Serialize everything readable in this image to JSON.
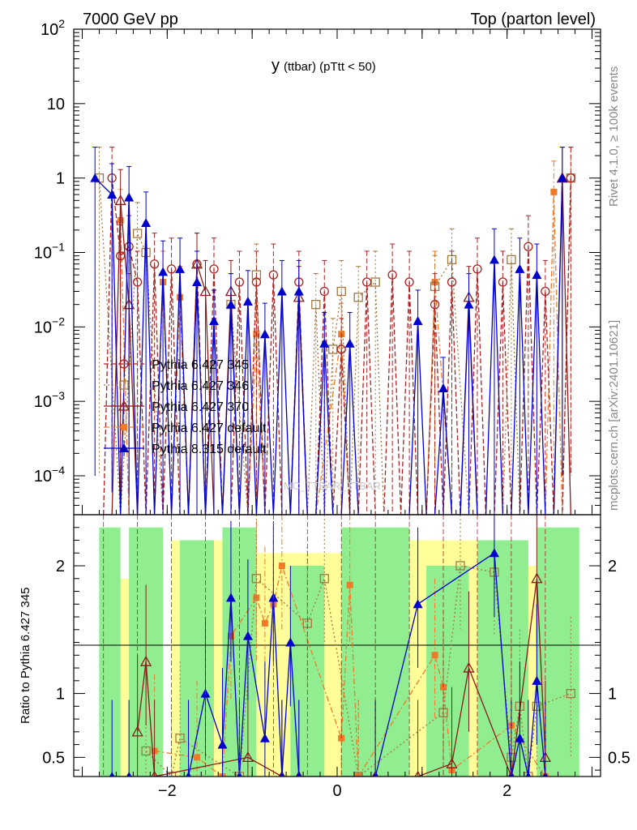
{
  "header": {
    "left": "7000 GeV pp",
    "right": "Top (parton level)"
  },
  "side_labels": {
    "rivet": "Rivet 4.1.0, ≥ 100k events",
    "mcplots": "mcplots.cern.ch [arXiv:2401.10621]"
  },
  "watermark": "MC_TTBAR_TTBAR",
  "colors": {
    "p345": "#aa2222",
    "p346": "#a07840",
    "p370": "#8b1a1a",
    "pdefault": "#f07a28",
    "p8": "#0000cc",
    "band_green": "#90ee90",
    "band_yellow": "#ffff99"
  },
  "chart_data": {
    "type": "line",
    "title_main": "y",
    "title_rest": "(ttbar)  (pTtt < 50)",
    "xlabel": "",
    "ylabel": "",
    "ratio_ylabel": "Ratio to Pythia 6.427 345",
    "xlim": [
      -3.1,
      3.1
    ],
    "ylim": [
      3e-05,
      100
    ],
    "ratio_ylim": [
      0.35,
      2.4
    ],
    "x_ticks": [
      "−2",
      "0",
      "2"
    ],
    "y_ticks": [
      "10^2",
      "10",
      "1",
      "10^-1",
      "10^-2",
      "10^-3",
      "10^-4"
    ],
    "ratio_ticks": [
      "2",
      "1",
      "0.5"
    ],
    "legend": [
      {
        "name": "Pythia 6.427 345",
        "key": "p345",
        "marker": "open-circle"
      },
      {
        "name": "Pythia 6.427 346",
        "key": "p346",
        "marker": "open-square"
      },
      {
        "name": "Pythia 6.427 370",
        "key": "p370",
        "marker": "open-triangle"
      },
      {
        "name": "Pythia 6.427 default",
        "key": "pdefault",
        "marker": "filled-square"
      },
      {
        "name": "Pythia 8.315 default",
        "key": "p8",
        "marker": "filled-triangle"
      }
    ],
    "series": [
      {
        "name": "Pythia 8.315 default",
        "key": "p8",
        "x": [
          -2.85,
          -2.65,
          -2.55,
          -2.45,
          -2.35,
          -2.25,
          -2.15,
          -2.05,
          -1.95,
          -1.85,
          -1.75,
          -1.65,
          -1.55,
          -1.45,
          -1.35,
          -1.25,
          -1.15,
          -1.05,
          -0.95,
          -0.85,
          -0.75,
          -0.65,
          -0.55,
          -0.45,
          -0.35,
          -0.25,
          -0.15,
          -0.05,
          0.05,
          0.15,
          0.25,
          0.35,
          0.45,
          0.55,
          0.65,
          0.75,
          0.85,
          0.95,
          1.05,
          1.15,
          1.25,
          1.35,
          1.45,
          1.55,
          1.65,
          1.75,
          1.85,
          1.95,
          2.05,
          2.15,
          2.25,
          2.35,
          2.45,
          2.55,
          2.65
        ],
        "values": [
          1.0,
          0.6,
          3e-05,
          0.55,
          3e-05,
          0.25,
          3e-05,
          0.055,
          3e-05,
          0.06,
          3e-05,
          0.04,
          3e-05,
          0.012,
          3e-05,
          0.02,
          3e-05,
          0.022,
          3e-05,
          0.008,
          3e-05,
          0.03,
          3e-05,
          0.03,
          3e-05,
          3e-05,
          0.006,
          3e-05,
          3e-05,
          0.006,
          3e-05,
          3e-05,
          3e-05,
          3e-05,
          3e-05,
          3e-05,
          3e-05,
          0.012,
          3e-05,
          3e-05,
          0.0015,
          3e-05,
          3e-05,
          0.02,
          3e-05,
          3e-05,
          0.08,
          3e-05,
          3e-05,
          0.06,
          3e-05,
          0.05,
          3e-05,
          3e-05,
          1.0
        ]
      },
      {
        "name": "Pythia 6.427 345",
        "key": "p345",
        "x": [
          -2.75,
          -2.65,
          -2.55,
          -2.45,
          -2.35,
          -2.25,
          -2.15,
          -2.05,
          -1.95,
          -1.85,
          -1.75,
          -1.65,
          -1.55,
          -1.45,
          -1.35,
          -1.25,
          -1.15,
          -1.05,
          -0.95,
          -0.85,
          -0.75,
          -0.65,
          -0.55,
          -0.45,
          -0.35,
          -0.25,
          -0.15,
          -0.05,
          0.05,
          0.15,
          0.25,
          0.35,
          0.45,
          0.55,
          0.65,
          0.75,
          0.85,
          0.95,
          1.05,
          1.15,
          1.25,
          1.35,
          1.45,
          1.55,
          1.65,
          1.75,
          1.85,
          1.95,
          2.05,
          2.15,
          2.25,
          2.35,
          2.45,
          2.55,
          2.65,
          2.75
        ],
        "values": [
          3e-05,
          1.0,
          0.09,
          0.12,
          0.04,
          3e-05,
          0.07,
          3e-05,
          0.06,
          3e-05,
          3e-05,
          0.07,
          3e-05,
          0.06,
          3e-05,
          3e-05,
          0.04,
          3e-05,
          0.04,
          3e-05,
          0.05,
          3e-05,
          3e-05,
          0.04,
          3e-05,
          3e-05,
          0.03,
          3e-05,
          0.005,
          3e-05,
          3e-05,
          0.04,
          3e-05,
          3e-05,
          0.05,
          3e-05,
          0.04,
          3e-05,
          3e-05,
          0.02,
          3e-05,
          0.04,
          3e-05,
          3e-05,
          0.06,
          3e-05,
          3e-05,
          0.04,
          3e-05,
          3e-05,
          0.12,
          3e-05,
          0.03,
          3e-05,
          3e-05,
          1.0
        ]
      },
      {
        "name": "Pythia 6.427 346",
        "key": "p346",
        "x": [
          -2.8,
          -2.55,
          -2.35,
          -2.25,
          -2.05,
          -1.95,
          -1.85,
          -1.75,
          -1.45,
          -1.35,
          -1.25,
          -1.05,
          -0.95,
          -0.85,
          -0.55,
          -0.45,
          -0.35,
          -0.25,
          -0.15,
          -0.05,
          0.05,
          0.15,
          0.25,
          0.45,
          0.55,
          0.65,
          0.85,
          1.05,
          1.15,
          1.35,
          1.55,
          1.75,
          1.85,
          1.95,
          2.05,
          2.15,
          2.25,
          2.35,
          2.45,
          2.55,
          2.65,
          2.75
        ],
        "values": [
          1.0,
          3e-05,
          0.18,
          0.1,
          3e-05,
          3e-05,
          3e-05,
          3e-05,
          3e-05,
          3e-05,
          0.02,
          3e-05,
          0.05,
          3e-05,
          3e-05,
          3e-05,
          3e-05,
          0.02,
          3e-05,
          0.005,
          0.03,
          3e-05,
          0.025,
          0.04,
          3e-05,
          3e-05,
          3e-05,
          3e-05,
          0.035,
          0.08,
          3e-05,
          3e-05,
          3e-05,
          3e-05,
          0.08,
          3e-05,
          3e-05,
          3e-05,
          3e-05,
          3e-05,
          3e-05,
          1.0
        ]
      },
      {
        "name": "Pythia 6.427 370",
        "key": "p370",
        "x": [
          -2.75,
          -2.65,
          -2.55,
          -2.45,
          -2.35,
          -2.25,
          -2.15,
          -2.05,
          -1.95,
          -1.85,
          -1.75,
          -1.65,
          -1.55,
          -1.45,
          -1.35,
          -1.25,
          -1.15,
          -1.05,
          -0.95,
          -0.85,
          -0.75,
          -0.65,
          -0.55,
          -0.45,
          -0.35,
          -0.25,
          -0.15,
          -0.05,
          0.05,
          0.15,
          0.25,
          0.35,
          0.45,
          0.55,
          0.65,
          0.75,
          0.85,
          0.95,
          1.05,
          1.15,
          1.25,
          1.35,
          1.45,
          1.55,
          1.65,
          1.75,
          1.85,
          1.95,
          2.05,
          2.15,
          2.25,
          2.35,
          2.45,
          2.55,
          2.65,
          2.75
        ],
        "values": [
          3e-05,
          3e-05,
          0.5,
          0.02,
          3e-05,
          3e-05,
          3e-05,
          3e-05,
          3e-05,
          3e-05,
          3e-05,
          0.07,
          0.03,
          3e-05,
          3e-05,
          0.03,
          3e-05,
          3e-05,
          3e-05,
          3e-05,
          3e-05,
          3e-05,
          3e-05,
          0.025,
          3e-05,
          3e-05,
          3e-05,
          3e-05,
          3e-05,
          3e-05,
          3e-05,
          3e-05,
          3e-05,
          3e-05,
          3e-05,
          3e-05,
          3e-05,
          3e-05,
          3e-05,
          3e-05,
          3e-05,
          3e-05,
          3e-05,
          0.025,
          3e-05,
          3e-05,
          3e-05,
          3e-05,
          3e-05,
          3e-05,
          3e-05,
          3e-05,
          3e-05,
          3e-05,
          1.0,
          3e-05
        ]
      },
      {
        "name": "Pythia 6.427 default",
        "key": "pdefault",
        "x": [
          -2.55,
          -2.45,
          -2.35,
          -2.15,
          -2.05,
          -1.95,
          -1.85,
          -1.75,
          -1.25,
          -1.05,
          -0.95,
          -0.85,
          -0.65,
          -0.45,
          -0.35,
          -0.25,
          0.05,
          0.15,
          0.45,
          0.55,
          0.75,
          0.85,
          1.05,
          1.15,
          1.35,
          1.45,
          1.55,
          1.75,
          1.85,
          1.95,
          2.05,
          2.15,
          2.35,
          2.45,
          2.55,
          2.65
        ],
        "values": [
          0.27,
          3e-05,
          3e-05,
          3e-05,
          0.04,
          3e-05,
          0.025,
          3e-05,
          3e-05,
          3e-05,
          0.008,
          3e-05,
          3e-05,
          3e-05,
          3e-05,
          3e-05,
          0.008,
          3e-05,
          3e-05,
          3e-05,
          3e-05,
          3e-05,
          3e-05,
          0.04,
          3e-05,
          3e-05,
          3e-05,
          3e-05,
          3e-05,
          3e-05,
          3e-05,
          3e-05,
          3e-05,
          3e-05,
          0.65,
          3e-05
        ]
      }
    ],
    "ratio": [
      {
        "key": "p8",
        "x": [
          -2.65,
          -2.45,
          -1.75,
          -1.55,
          -1.35,
          -1.25,
          -1.15,
          -1.05,
          -0.85,
          -0.75,
          -0.65,
          -0.55,
          -0.45,
          0.45,
          0.95,
          1.85,
          2.05,
          2.15,
          2.25,
          2.35,
          2.45
        ],
        "values": [
          0.35,
          0.35,
          0.35,
          1.0,
          0.6,
          1.75,
          0.35,
          1.45,
          0.65,
          1.75,
          0.35,
          1.4,
          0.35,
          0.35,
          1.7,
          2.1,
          0.35,
          0.65,
          0.35,
          1.1,
          0.35
        ]
      },
      {
        "key": "p370",
        "x": [
          -2.35,
          -2.25,
          -2.15,
          -1.05,
          -0.65,
          -0.45,
          0.45,
          0.95,
          1.35,
          1.55,
          2.05,
          2.35,
          2.45
        ],
        "values": [
          0.7,
          1.25,
          0.35,
          0.5,
          0.35,
          0.35,
          0.35,
          0.35,
          0.45,
          1.2,
          0.35,
          1.9,
          0.5
        ]
      },
      {
        "key": "p346",
        "x": [
          -2.25,
          -1.95,
          -1.85,
          -1.15,
          -0.95,
          -0.35,
          -0.15,
          0.25,
          1.25,
          1.45,
          1.85,
          2.05,
          2.15,
          2.25,
          2.35,
          2.75
        ],
        "values": [
          0.55,
          0.35,
          0.65,
          0.35,
          1.9,
          1.55,
          1.9,
          0.35,
          0.85,
          2.0,
          1.95,
          0.5,
          0.9,
          0.35,
          0.9,
          1.0
        ]
      },
      {
        "key": "pdefault",
        "x": [
          -2.15,
          -1.65,
          -1.35,
          -1.25,
          -0.95,
          -0.85,
          -0.75,
          -0.65,
          0.05,
          0.15,
          0.25,
          1.15,
          1.25,
          1.35,
          2.05,
          2.45
        ],
        "values": [
          0.55,
          0.5,
          0.35,
          1.45,
          1.75,
          1.55,
          1.7,
          2.0,
          0.65,
          1.85,
          0.35,
          1.3,
          1.05,
          0.4,
          0.75,
          0.35
        ]
      }
    ],
    "band_yellow": [
      {
        "x0": -2.65,
        "x1": -2.05,
        "lo": 0.35,
        "hi": 1.9
      },
      {
        "x0": -1.95,
        "x1": -1.35,
        "lo": 0.35,
        "hi": 2.2
      },
      {
        "x0": -0.95,
        "x1": 0.45,
        "lo": 0.35,
        "hi": 2.1
      },
      {
        "x0": 0.85,
        "x1": 1.65,
        "lo": 0.35,
        "hi": 2.2
      },
      {
        "x0": 2.05,
        "x1": 2.75,
        "lo": 0.35,
        "hi": 2.0
      }
    ],
    "band_green": [
      {
        "x0": -2.8,
        "x1": -2.55,
        "lo": 0.35,
        "hi": 2.3
      },
      {
        "x0": -2.45,
        "x1": -2.05,
        "lo": 0.35,
        "hi": 2.3
      },
      {
        "x0": -1.85,
        "x1": -1.45,
        "lo": 0.35,
        "hi": 2.2
      },
      {
        "x0": -1.35,
        "x1": -0.95,
        "lo": 0.35,
        "hi": 2.3
      },
      {
        "x0": -0.55,
        "x1": -0.15,
        "lo": 0.35,
        "hi": 2.0
      },
      {
        "x0": 0.05,
        "x1": 0.85,
        "lo": 0.35,
        "hi": 2.3
      },
      {
        "x0": 1.05,
        "x1": 1.55,
        "lo": 0.35,
        "hi": 2.0
      },
      {
        "x0": 1.65,
        "x1": 2.25,
        "lo": 0.35,
        "hi": 2.2
      },
      {
        "x0": 2.35,
        "x1": 2.85,
        "lo": 0.35,
        "hi": 2.3
      }
    ]
  }
}
